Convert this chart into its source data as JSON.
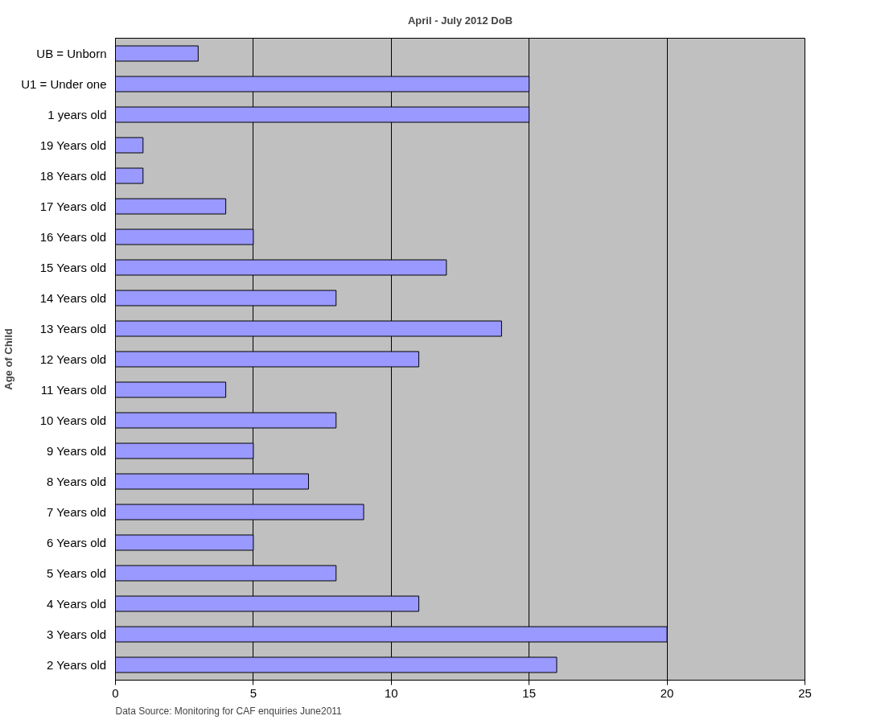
{
  "chart_data": {
    "type": "bar",
    "orientation": "horizontal",
    "title": "April - July 2012 DoB",
    "ylabel": "Age of Child",
    "categories": [
      "UB = Unborn",
      "U1 = Under one",
      "1 years old",
      "19 Years old",
      "18 Years old",
      "17 Years old",
      "16 Years old",
      "15 Years old",
      "14 Years old",
      "13 Years old",
      "12 Years old",
      "11 Years old",
      "10 Years old",
      "9 Years old",
      "8 Years old",
      "7 Years old",
      "6 Years old",
      "5 Years old",
      "4 Years old",
      "3 Years old",
      "2 Years old"
    ],
    "values": [
      3,
      15,
      15,
      1,
      1,
      4,
      5,
      12,
      8,
      14,
      11,
      4,
      8,
      5,
      7,
      9,
      5,
      8,
      11,
      20,
      16
    ],
    "color": "#9999ff",
    "xlim": [
      0,
      25
    ],
    "xticks": [
      0,
      5,
      10,
      15,
      20,
      25
    ],
    "grid": "x",
    "annotations": [
      "Data Source: Monitoring for CAF enquiries June2011"
    ]
  }
}
